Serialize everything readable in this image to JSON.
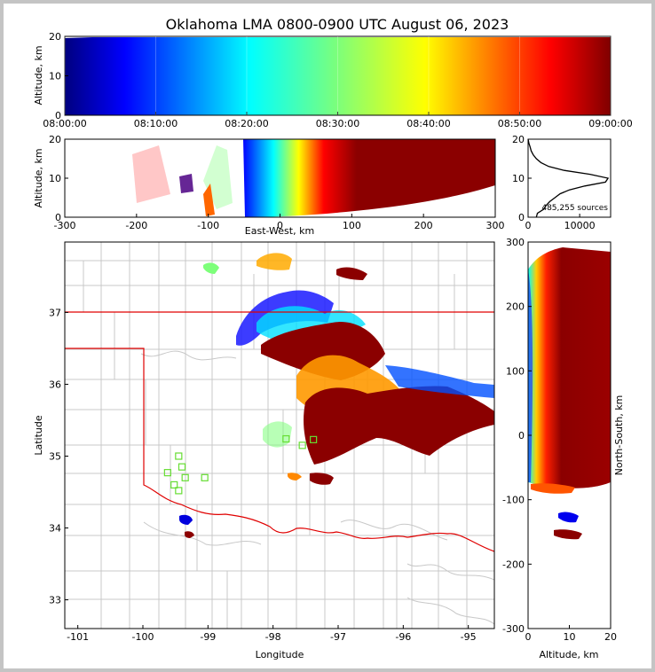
{
  "chart_data": {
    "type": "scatter",
    "title": "Oklahoma LMA 0800-0900 UTC August 06, 2023",
    "colormap": "jet (colored by time, 08:00 blue to 09:00 dark red)",
    "panels": [
      {
        "id": "time-altitude",
        "type": "scatter",
        "ylabel": "Altitude, km",
        "ylim": [
          0,
          20
        ],
        "yticks": [
          "0",
          "10",
          "20"
        ],
        "xlim": [
          "08:00:00",
          "09:00:00"
        ],
        "xticks": [
          "08:00:00",
          "08:10:00",
          "08:20:00",
          "08:30:00",
          "08:40:00",
          "08:50:00",
          "09:00:00"
        ]
      },
      {
        "id": "ew-altitude",
        "type": "scatter",
        "xlabel": "East-West, km",
        "ylabel": "Altitude, km",
        "xlim": [
          -300,
          300
        ],
        "xticks": [
          "-300",
          "-200",
          "-100",
          "0",
          "100",
          "200",
          "300"
        ],
        "ylim": [
          0,
          20
        ],
        "yticks": [
          "0",
          "10",
          "20"
        ]
      },
      {
        "id": "altitude-histogram",
        "type": "line",
        "xlim": [
          0,
          16000
        ],
        "xticks": [
          "0",
          "10000"
        ],
        "ylim": [
          0,
          20
        ],
        "yticks": [
          "0",
          "10",
          "20"
        ],
        "annotation": "485,255 sources",
        "profile": [
          [
            0,
            1600
          ],
          [
            1,
            1800
          ],
          [
            2,
            3000
          ],
          [
            3,
            3500
          ],
          [
            4,
            4200
          ],
          [
            5,
            5200
          ],
          [
            6,
            6200
          ],
          [
            7,
            8000
          ],
          [
            8,
            11000
          ],
          [
            9,
            15000
          ],
          [
            10,
            15500
          ],
          [
            11,
            12000
          ],
          [
            12,
            7000
          ],
          [
            13,
            4000
          ],
          [
            14,
            2500
          ],
          [
            15,
            1600
          ],
          [
            16,
            1000
          ],
          [
            17,
            600
          ],
          [
            18,
            400
          ],
          [
            19,
            150
          ],
          [
            20,
            0
          ]
        ]
      },
      {
        "id": "plan-view",
        "type": "scatter",
        "xlabel": "Longitude",
        "ylabel": "Latitude",
        "xlim": [
          -101.2,
          -94.6
        ],
        "xticks": [
          "-101",
          "-100",
          "-99",
          "-98",
          "-97",
          "-96",
          "-95"
        ],
        "ylim": [
          32.6,
          37.98
        ],
        "yticks": [
          "33",
          "34",
          "35",
          "36",
          "37"
        ],
        "stations": [
          [
            -99.45,
            35.0
          ],
          [
            -99.62,
            34.77
          ],
          [
            -99.4,
            34.85
          ],
          [
            -99.35,
            34.7
          ],
          [
            -99.52,
            34.6
          ],
          [
            -99.45,
            34.52
          ],
          [
            -99.05,
            34.7
          ],
          [
            -97.38,
            35.23
          ],
          [
            -97.55,
            35.15
          ],
          [
            -97.8,
            35.24
          ]
        ]
      },
      {
        "id": "altitude-ns",
        "type": "scatter",
        "xlabel": "Altitude, km",
        "ylabel": "North-South, km",
        "xlim": [
          0,
          20
        ],
        "xticks": [
          "0",
          "10",
          "20"
        ],
        "ylim": [
          -300,
          300
        ],
        "yticks": [
          "-300",
          "-200",
          "-100",
          "0",
          "100",
          "200",
          "300"
        ]
      }
    ]
  }
}
